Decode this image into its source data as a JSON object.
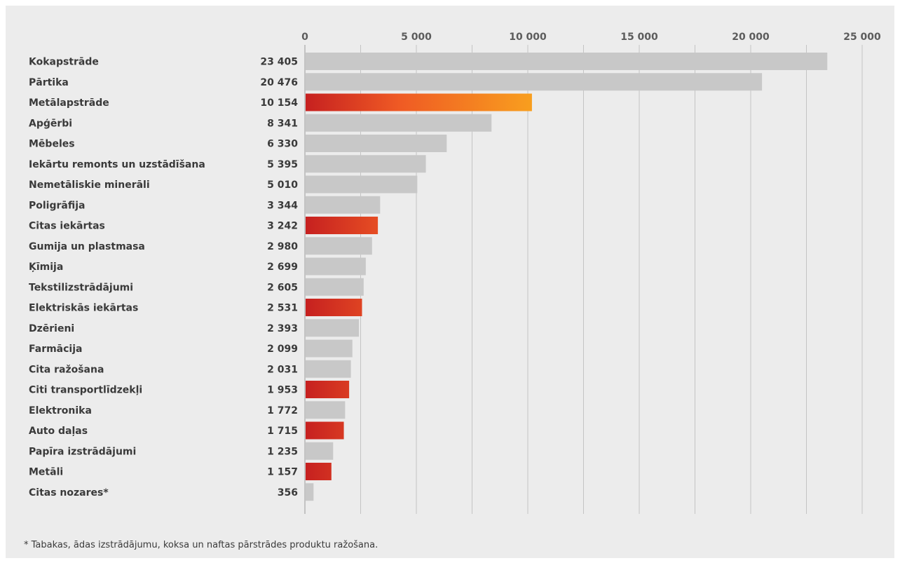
{
  "chart_data": {
    "type": "bar",
    "orientation": "horizontal",
    "title": "",
    "xlabel": "",
    "ylabel": "",
    "xlim": [
      0,
      25000
    ],
    "x_ticks": [
      0,
      5000,
      10000,
      15000,
      20000,
      25000
    ],
    "x_tick_labels": [
      "0",
      "5 000",
      "10 000",
      "15 000",
      "20 000",
      "25 000"
    ],
    "grid": "vertical",
    "axis_position": "top",
    "categories": [
      "Kokapstrāde",
      "Pārtika",
      "Metālapstrāde",
      "Apģērbi",
      "Mēbeles",
      "Iekārtu remonts un uzstādīšana",
      "Nemetāliskie minerāli",
      "Poligrāfija",
      "Citas iekārtas",
      "Gumija un plastmasa",
      "Ķīmija",
      "Tekstilizstrādājumi",
      "Elektriskās iekārtas",
      "Dzērieni",
      "Farmācija",
      "Cita ražošana",
      "Citi transportlīdzekļi",
      "Elektronika",
      "Auto daļas",
      "Papīra izstrādājumi",
      "Metāli",
      "Citas nozares*"
    ],
    "values": [
      23405,
      20476,
      10154,
      8341,
      6330,
      5395,
      5010,
      3344,
      3242,
      2980,
      2699,
      2605,
      2531,
      2393,
      2099,
      2031,
      1953,
      1772,
      1715,
      1235,
      1157,
      356
    ],
    "value_labels": [
      "23 405",
      "20 476",
      "10 154",
      "8 341",
      "6 330",
      "5 395",
      "5 010",
      "3 344",
      "3 242",
      "2 980",
      "2 699",
      "2 605",
      "2 531",
      "2 393",
      "2 099",
      "2 031",
      "1 953",
      "1 772",
      "1 715",
      "1 235",
      "1 157",
      "356"
    ],
    "highlighted": [
      false,
      false,
      true,
      false,
      false,
      false,
      false,
      false,
      true,
      false,
      false,
      false,
      true,
      false,
      false,
      false,
      true,
      false,
      true,
      false,
      true,
      false
    ]
  },
  "colors": {
    "background": "#ececec",
    "bar_default": "#c8c8c8",
    "bar_highlight_start": "#c62020",
    "bar_highlight_mid": "#ef5a24",
    "bar_highlight_end": "#f9a31e",
    "gridline": "#c4c4c4"
  },
  "footnote": "*  Tabakas, ādas izstrādājumu, koksa un naftas pārstrādes produktu ražošana."
}
